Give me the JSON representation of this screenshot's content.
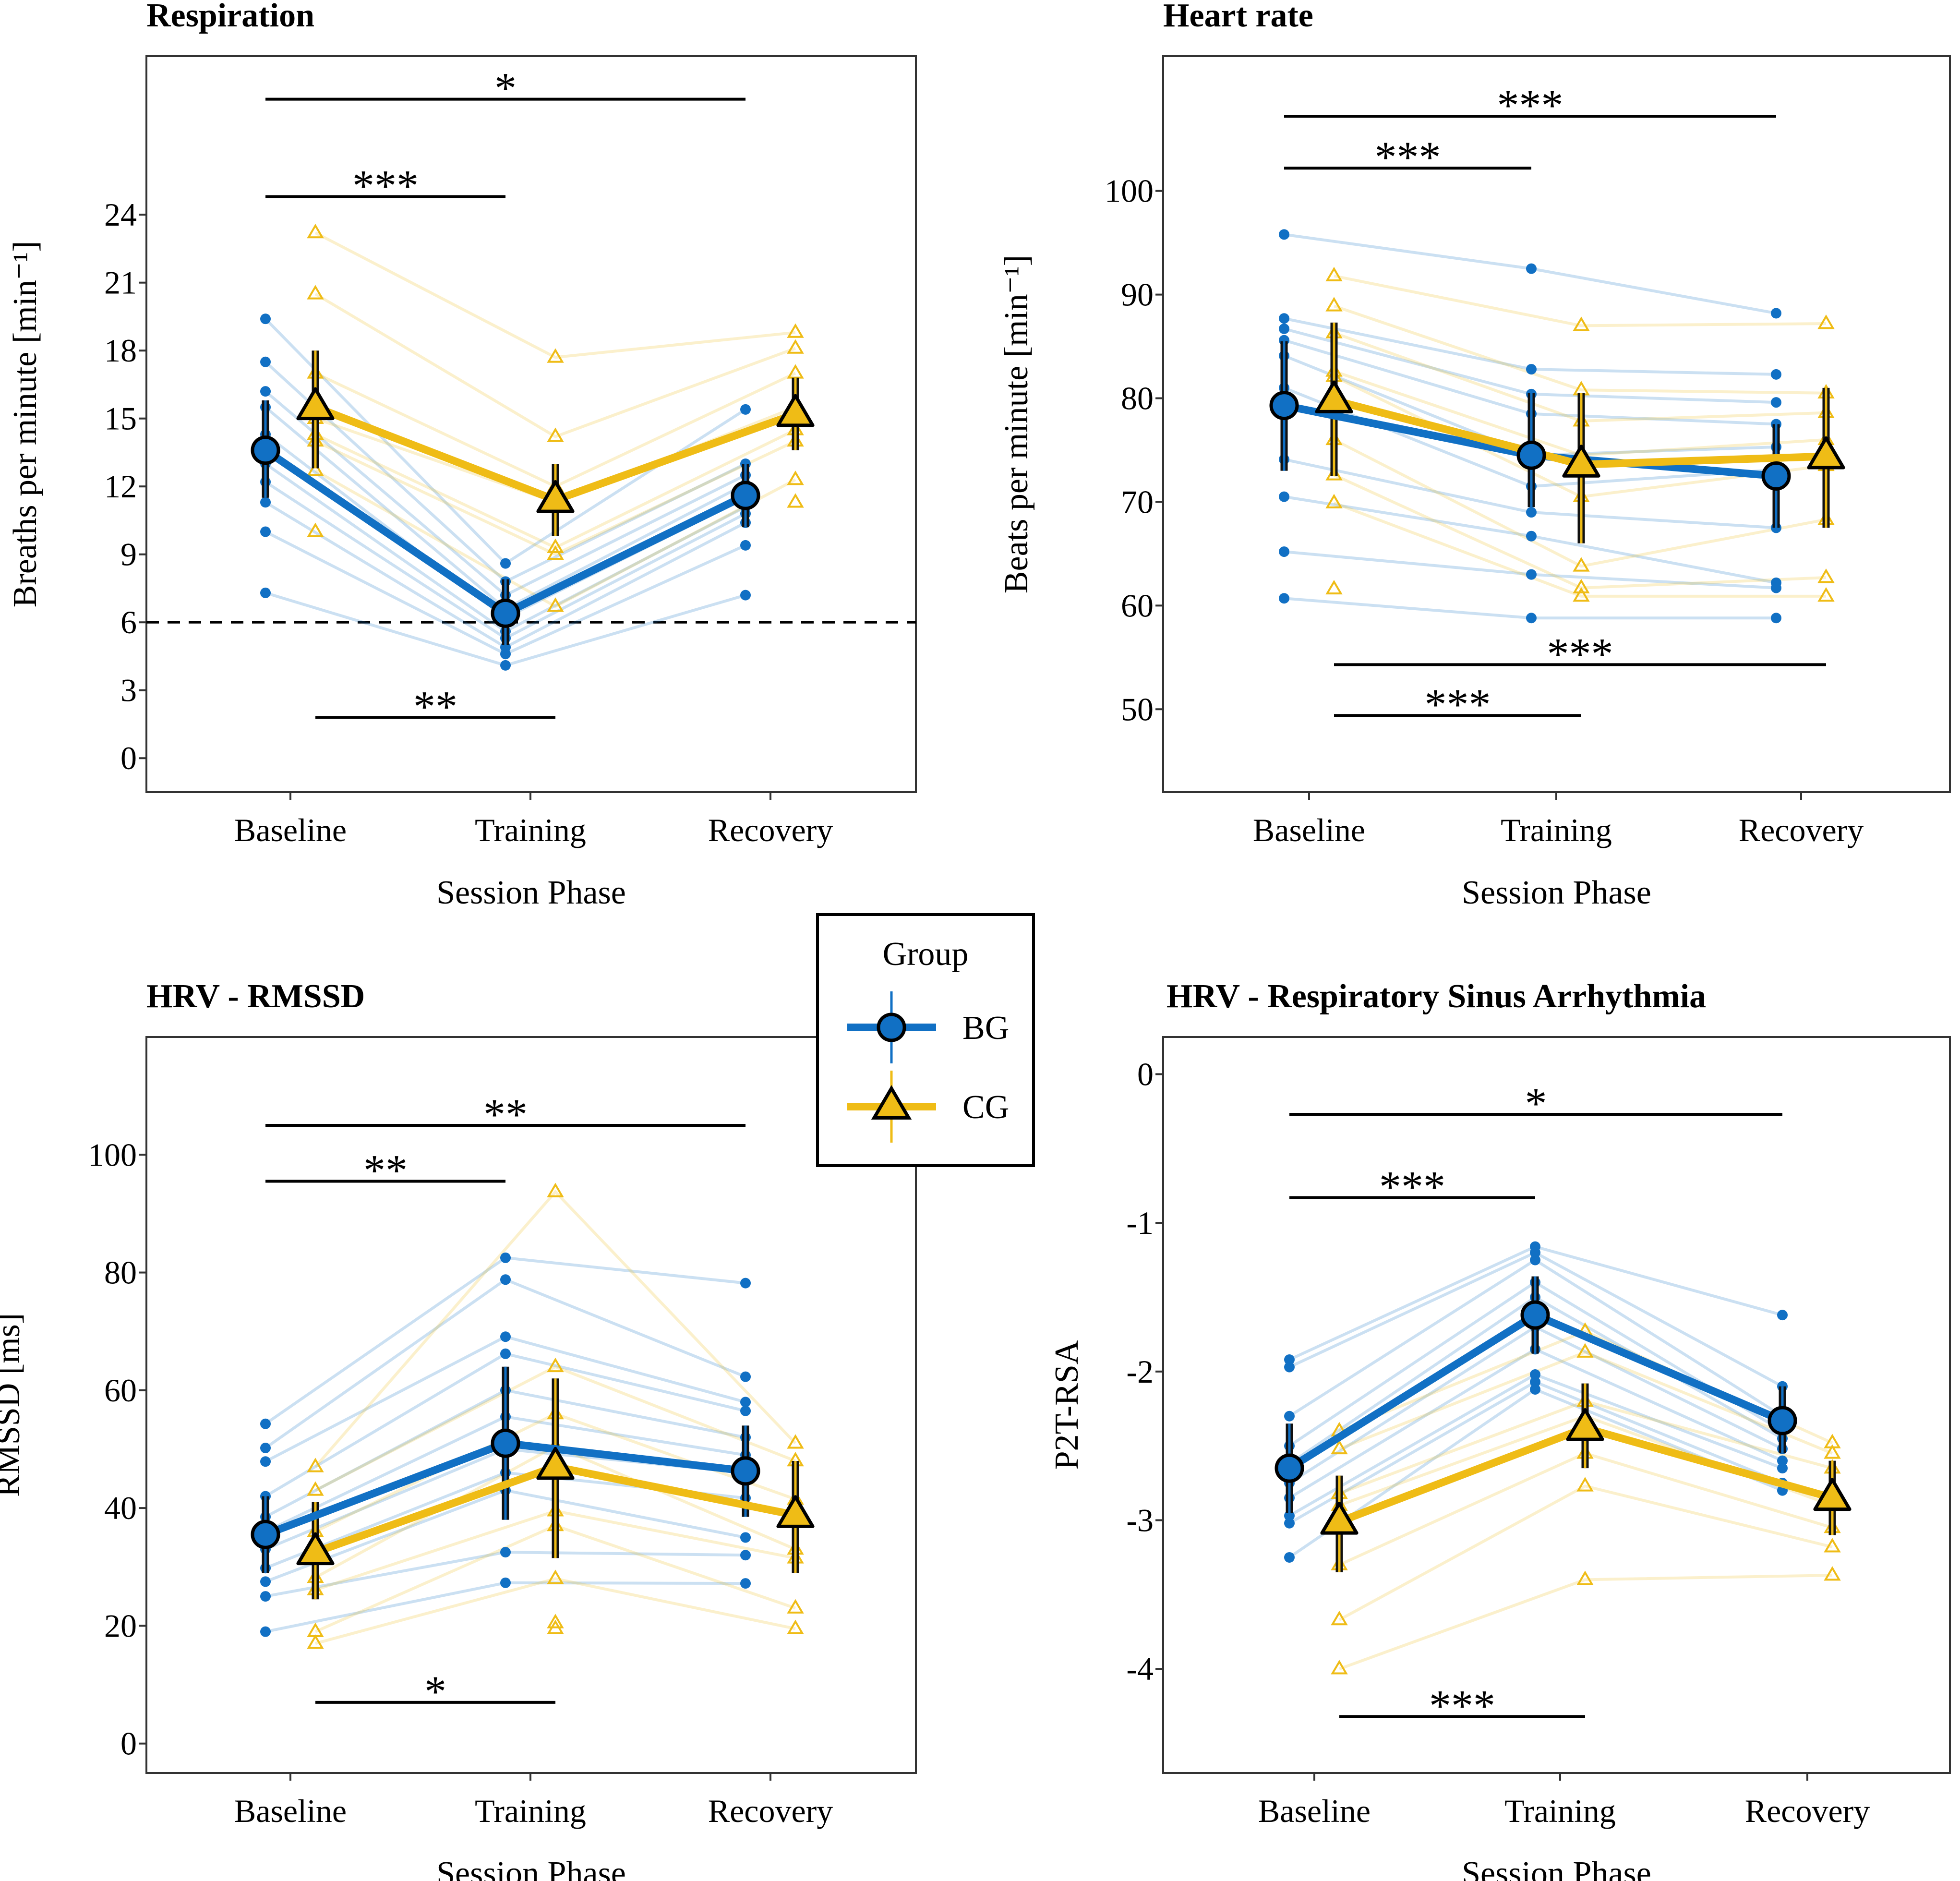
{
  "legend": {
    "title": "Group",
    "entries": [
      {
        "name": "BG",
        "color": "#1170C4",
        "marker": "circle"
      },
      {
        "name": "CG",
        "color": "#EFBC16",
        "marker": "triangle"
      }
    ],
    "placement": "center"
  },
  "chart_data": [
    {
      "type": "line",
      "title": "Respiration",
      "xlabel": "Session Phase",
      "ylabel": "Breaths per minute [min⁻¹]",
      "categories": [
        "Baseline",
        "Training",
        "Recovery"
      ],
      "ylim": [
        -1.5,
        31
      ],
      "yticks": [
        0,
        3,
        6,
        9,
        12,
        15,
        18,
        21,
        24
      ],
      "ytick_labels": [
        "0",
        "3",
        "6",
        "9",
        "12",
        "15",
        "18",
        "21",
        "24"
      ],
      "reference_line": 6,
      "series": [
        {
          "name": "BG",
          "values": [
            13.6,
            6.4,
            11.6
          ],
          "error_low": [
            11.5,
            5.0,
            10.2
          ],
          "error_high": [
            15.8,
            7.9,
            13.0
          ],
          "points": [
            [
              19.4,
              17.5,
              16.2,
              15.5,
              14.3,
              13.0,
              12.2,
              11.3,
              10.0,
              7.3
            ],
            [
              8.6,
              7.8,
              7.2,
              6.6,
              6.2,
              5.6,
              5.3,
              4.9,
              4.6,
              4.1
            ],
            [
              15.4,
              13.0,
              12.5,
              12.1,
              11.5,
              11.1,
              10.8,
              10.4,
              9.4,
              7.2
            ]
          ]
        },
        {
          "name": "CG",
          "values": [
            15.5,
            11.4,
            15.2
          ],
          "error_low": [
            12.8,
            9.8,
            13.6
          ],
          "error_high": [
            18.0,
            13.0,
            16.8
          ],
          "points": [
            [
              23.2,
              20.5,
              17.0,
              15.0,
              14.3,
              14.0,
              12.7,
              10.0
            ],
            [
              17.7,
              14.2,
              12.0,
              11.3,
              9.3,
              9.0,
              6.7
            ],
            [
              18.8,
              18.1,
              17.0,
              15.5,
              14.5,
              14.0,
              12.3,
              11.3
            ]
          ]
        }
      ],
      "significance": [
        {
          "label": "*",
          "from": "Baseline",
          "to": "Recovery",
          "group": "BG",
          "y": 29.1
        },
        {
          "label": "***",
          "from": "Baseline",
          "to": "Training",
          "group": "BG",
          "y": 24.8
        },
        {
          "label": "**",
          "from": "Baseline",
          "to": "Training",
          "group": "CG",
          "y": 1.8
        }
      ]
    },
    {
      "type": "line",
      "title": "Heart rate",
      "xlabel": "Session Phase",
      "ylabel": "Beats per minute [min⁻¹]",
      "categories": [
        "Baseline",
        "Training",
        "Recovery"
      ],
      "ylim": [
        42,
        113
      ],
      "yticks": [
        50,
        60,
        70,
        80,
        90,
        100
      ],
      "ytick_labels": [
        "50",
        "60",
        "70",
        "80",
        "90",
        "100"
      ],
      "series": [
        {
          "name": "BG",
          "values": [
            79.3,
            74.5,
            72.5
          ],
          "error_low": [
            73.0,
            69.5,
            67.5
          ],
          "error_high": [
            85.5,
            80.5,
            77.5
          ],
          "points": [
            [
              95.8,
              87.7,
              86.7,
              85.6,
              84.1,
              81.0,
              74.1,
              70.5,
              65.2,
              60.7
            ],
            [
              92.5,
              82.8,
              80.4,
              78.5,
              74.5,
              71.5,
              69.0,
              66.7,
              63.0,
              58.8
            ],
            [
              88.2,
              82.3,
              79.6,
              77.5,
              75.3,
              73.1,
              67.5,
              62.2,
              61.7,
              58.8
            ]
          ]
        },
        {
          "name": "CG",
          "values": [
            79.8,
            73.6,
            74.4
          ],
          "error_low": [
            72.5,
            66.0,
            67.5
          ],
          "error_high": [
            87.3,
            80.5,
            81.0
          ],
          "points": [
            [
              91.8,
              88.9,
              86.3,
              82.6,
              82.1,
              76.0,
              72.6,
              69.9,
              61.6
            ],
            [
              87.0,
              80.8,
              77.8,
              74.5,
              70.5,
              63.8,
              61.7,
              60.9
            ],
            [
              87.2,
              80.5,
              78.6,
              76.0,
              73.5,
              68.3,
              62.7,
              60.9
            ]
          ]
        }
      ],
      "significance": [
        {
          "label": "***",
          "from": "Baseline",
          "to": "Recovery",
          "group": "BG",
          "y": 107.2
        },
        {
          "label": "***",
          "from": "Baseline",
          "to": "Training",
          "group": "BG",
          "y": 102.2
        },
        {
          "label": "***",
          "from": "Baseline",
          "to": "Recovery",
          "group": "CG",
          "y": 54.3
        },
        {
          "label": "***",
          "from": "Baseline",
          "to": "Training",
          "group": "CG",
          "y": 49.4
        }
      ]
    },
    {
      "type": "line",
      "title": "HRV - RMSSD",
      "xlabel": "Session Phase",
      "ylabel": "RMSSD [ms]",
      "categories": [
        "Baseline",
        "Training",
        "Recovery"
      ],
      "ylim": [
        -5,
        120
      ],
      "yticks": [
        0,
        20,
        40,
        60,
        80,
        100
      ],
      "ytick_labels": [
        "0",
        "20",
        "40",
        "60",
        "80",
        "100"
      ],
      "series": [
        {
          "name": "BG",
          "values": [
            35.5,
            51.0,
            46.3
          ],
          "error_low": [
            29.0,
            38.0,
            38.5
          ],
          "error_high": [
            42.0,
            64.0,
            54.0
          ],
          "points": [
            [
              54.3,
              50.2,
              47.9,
              42.0,
              38.5,
              36.0,
              33.0,
              29.8,
              27.5,
              25.0,
              19.0
            ],
            [
              82.5,
              78.8,
              69.1,
              66.2,
              60.0,
              55.5,
              50.0,
              46.0,
              43.0,
              32.5,
              27.3
            ],
            [
              78.2,
              62.3,
              58.0,
              56.5,
              52.0,
              49.0,
              46.0,
              41.7,
              35.0,
              32.0,
              27.2
            ]
          ]
        },
        {
          "name": "CG",
          "values": [
            32.5,
            47.0,
            38.8
          ],
          "error_low": [
            24.5,
            31.5,
            29.0
          ],
          "error_high": [
            41.0,
            62.0,
            48.0
          ],
          "points": [
            [
              47.0,
              43.0,
              36.0,
              28.2,
              26.1,
              19.0,
              17.0
            ],
            [
              93.7,
              64.0,
              56.0,
              50.5,
              39.5,
              37.0,
              28.0,
              20.5,
              19.5
            ],
            [
              51.0,
              48.0,
              41.5,
              33.0,
              31.5,
              23.0,
              19.5
            ]
          ]
        }
      ],
      "significance": [
        {
          "label": "**",
          "from": "Baseline",
          "to": "Recovery",
          "group": "BG",
          "y": 105.0
        },
        {
          "label": "**",
          "from": "Baseline",
          "to": "Training",
          "group": "BG",
          "y": 95.5
        },
        {
          "label": "*",
          "from": "Baseline",
          "to": "Training",
          "group": "CG",
          "y": 7.0
        }
      ]
    },
    {
      "type": "line",
      "title": "HRV - Respiratory Sinus Arrhythmia",
      "xlabel": "Session Phase",
      "ylabel": "P2T-RSA",
      "categories": [
        "Baseline",
        "Training",
        "Recovery"
      ],
      "ylim": [
        -4.7,
        0.25
      ],
      "yticks": [
        -4,
        -3,
        -2,
        -1,
        0
      ],
      "ytick_labels": [
        "-4",
        "-3",
        "-2",
        "-1",
        "0"
      ],
      "series": [
        {
          "name": "BG",
          "values": [
            -2.65,
            -1.62,
            -2.33
          ],
          "error_low": [
            -2.95,
            -1.88,
            -2.55
          ],
          "error_high": [
            -2.35,
            -1.36,
            -2.1
          ],
          "points": [
            [
              -1.92,
              -1.97,
              -2.3,
              -2.5,
              -2.62,
              -2.75,
              -2.85,
              -2.97,
              -3.02,
              -3.25
            ],
            [
              -1.16,
              -1.2,
              -1.25,
              -1.4,
              -1.5,
              -1.7,
              -1.85,
              -2.02,
              -2.07,
              -2.12
            ],
            [
              -1.62,
              -2.1,
              -2.3,
              -2.4,
              -2.45,
              -2.52,
              -2.6,
              -2.65,
              -2.75,
              -2.8
            ]
          ]
        },
        {
          "name": "CG",
          "values": [
            -3.01,
            -2.38,
            -2.85
          ],
          "error_low": [
            -3.35,
            -2.65,
            -3.1
          ],
          "error_high": [
            -2.7,
            -2.08,
            -2.6
          ],
          "points": [
            [
              -2.4,
              -2.52,
              -2.82,
              -2.9,
              -3.3,
              -3.67,
              -4.0
            ],
            [
              -1.73,
              -1.87,
              -2.2,
              -2.3,
              -2.55,
              -2.77,
              -3.4
            ],
            [
              -2.48,
              -2.55,
              -2.65,
              -2.9,
              -3.05,
              -3.18,
              -3.37
            ]
          ]
        }
      ],
      "significance": [
        {
          "label": "*",
          "from": "Baseline",
          "to": "Recovery",
          "group": "BG",
          "y": -0.27
        },
        {
          "label": "***",
          "from": "Baseline",
          "to": "Training",
          "group": "BG",
          "y": -0.83
        },
        {
          "label": "***",
          "from": "Baseline",
          "to": "Training",
          "group": "CG",
          "y": -4.32
        }
      ]
    }
  ]
}
